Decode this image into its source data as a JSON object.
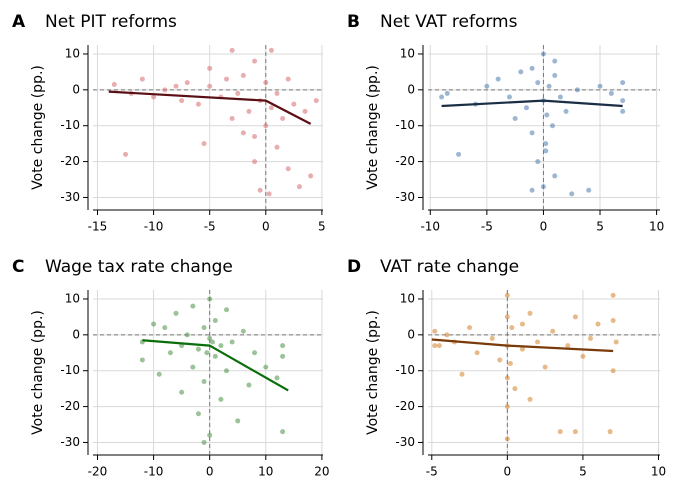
{
  "chart_data": [
    {
      "type": "scatter",
      "label": "A",
      "title": "Net PIT reforms",
      "y_label": "Vote change (pp.)",
      "color": "#d9777a",
      "x": [
        -13.5,
        -12.5,
        -12,
        -11,
        -10,
        -9,
        -8,
        -7.5,
        -7,
        -6,
        -5.5,
        -5,
        -5,
        -4,
        -3.5,
        -3,
        -3,
        -2.5,
        -2,
        -2,
        -1.5,
        -1,
        -1,
        -0.5,
        -0.5,
        0,
        0,
        0.5,
        0.5,
        1,
        1,
        1.5,
        2,
        2,
        2.5,
        3,
        3.5,
        4,
        4.5,
        -1,
        0.3
      ],
      "y": [
        1.5,
        -18,
        -1,
        3,
        -2,
        0,
        1,
        -3,
        2,
        -4,
        -15,
        1,
        6,
        -2,
        3,
        -8,
        11,
        -1,
        -12,
        4,
        -6,
        -20,
        8,
        -3,
        -28,
        -10,
        2,
        -5,
        11,
        -16,
        -1,
        -8,
        3,
        -22,
        -4,
        -27,
        -6,
        -24,
        -3,
        -13,
        -29
      ],
      "fit": {
        "x": [
          -14,
          0,
          4
        ],
        "y": [
          -0.5,
          -3,
          -9.5
        ],
        "color": "#5a0f14"
      },
      "ref_lines": {
        "x": 0,
        "y": 0
      },
      "xlim": [
        -15.4,
        5.1
      ],
      "ylim": [
        -33.5,
        12.5
      ],
      "xticks": [
        -15,
        -10,
        -5,
        0,
        5
      ],
      "yticks": [
        -30,
        -20,
        -10,
        0,
        10
      ],
      "grid": true
    },
    {
      "type": "scatter",
      "label": "B",
      "title": "Net VAT reforms",
      "y_label": "Vote change (pp.)",
      "color": "#5b87b5",
      "x": [
        -9,
        -8.5,
        -7.5,
        -6,
        -5,
        -4,
        -3,
        -2.5,
        -2,
        -1.5,
        -1,
        -1,
        -0.5,
        -0.5,
        0,
        0,
        0,
        0.2,
        0.3,
        0.5,
        0.8,
        1,
        1,
        1.5,
        2,
        2.5,
        3,
        4,
        5,
        6,
        7,
        7,
        7,
        -1,
        1,
        0.2
      ],
      "y": [
        -2,
        -1,
        -18,
        -4,
        1,
        3,
        -2,
        -8,
        5,
        -5,
        -12,
        6,
        -20,
        2,
        -3,
        10,
        -27,
        -15,
        -7,
        1,
        -10,
        4,
        -24,
        -2,
        -6,
        -29,
        0,
        -28,
        1,
        -1,
        -3,
        2,
        -6,
        -28,
        8,
        -17
      ],
      "fit": {
        "x": [
          -9,
          0,
          7
        ],
        "y": [
          -4.5,
          -3,
          -4.5
        ],
        "color": "#1a2e44"
      },
      "ref_lines": {
        "x": 0,
        "y": 0
      },
      "xlim": [
        -10.2,
        10.3
      ],
      "ylim": [
        -33.5,
        12.5
      ],
      "xticks": [
        -10,
        -5,
        0,
        5,
        10
      ],
      "yticks": [
        -30,
        -20,
        -10,
        0,
        10
      ],
      "grid": true
    },
    {
      "type": "scatter",
      "label": "C",
      "title": "Wage tax rate change",
      "y_label": "Vote change (pp.)",
      "color": "#5a9a55",
      "x": [
        -12,
        -12,
        -10,
        -9,
        -8,
        -7,
        -6,
        -5,
        -5,
        -4,
        -3,
        -3,
        -2,
        -2,
        -1,
        -1,
        0,
        0,
        0,
        1,
        1,
        2,
        2,
        3,
        3,
        4,
        5,
        6,
        7,
        8,
        10,
        12,
        13,
        13,
        13,
        -1,
        0.5,
        -0.5
      ],
      "y": [
        -7,
        -2,
        3,
        -11,
        2,
        -5,
        6,
        -3,
        -16,
        0,
        -9,
        8,
        -4,
        -22,
        2,
        -13,
        -1,
        10,
        -28,
        -6,
        4,
        -18,
        -3,
        7,
        -10,
        -2,
        -24,
        1,
        -14,
        -5,
        -9,
        -12,
        -27,
        -6,
        -3,
        -30,
        -2,
        -5
      ],
      "fit": {
        "x": [
          -12,
          0,
          14
        ],
        "y": [
          -1.5,
          -3,
          -15.5
        ],
        "color": "#0a6e0a"
      },
      "ref_lines": {
        "x": 0,
        "y": 0
      },
      "xlim": [
        -20.8,
        20.2
      ],
      "ylim": [
        -33.5,
        12.5
      ],
      "xticks": [
        -20,
        -10,
        0,
        10,
        20
      ],
      "yticks": [
        -30,
        -20,
        -10,
        0,
        10
      ],
      "grid": true
    },
    {
      "type": "scatter",
      "label": "D",
      "title": "VAT rate change",
      "y_label": "Vote change (pp.)",
      "color": "#d98a3a",
      "x": [
        -4.8,
        -4.5,
        -4,
        -3.5,
        -3,
        -2.5,
        -2,
        -1,
        -0.5,
        0,
        0,
        0,
        0,
        0,
        0,
        0.2,
        0.3,
        0.5,
        1,
        1,
        1.5,
        1.5,
        2,
        2.5,
        3,
        3.5,
        4,
        4.5,
        5,
        5.5,
        6,
        6.8,
        7,
        7,
        7,
        7.2,
        -4.8,
        4.5
      ],
      "y": [
        1,
        -3,
        0,
        -2,
        -11,
        2,
        -5,
        -1,
        -7,
        -29,
        -20,
        -12,
        -3,
        5,
        11,
        -8,
        2,
        -15,
        -4,
        3,
        -18,
        6,
        -2,
        -9,
        1,
        -27,
        -3,
        5,
        -6,
        -1,
        3,
        -27,
        -10,
        4,
        11,
        -2,
        -3,
        -27
      ],
      "fit": {
        "x": [
          -5,
          0,
          7
        ],
        "y": [
          -1.3,
          -3,
          -4.5
        ],
        "color": "#7a3a0a"
      },
      "ref_lines": {
        "x": 0,
        "y": 0
      },
      "xlim": [
        -5.25,
        10.1
      ],
      "ylim": [
        -33.5,
        12.5
      ],
      "xticks": [
        -5,
        0,
        5,
        10
      ],
      "yticks": [
        -30,
        -20,
        -10,
        0,
        10
      ],
      "grid": true
    }
  ]
}
